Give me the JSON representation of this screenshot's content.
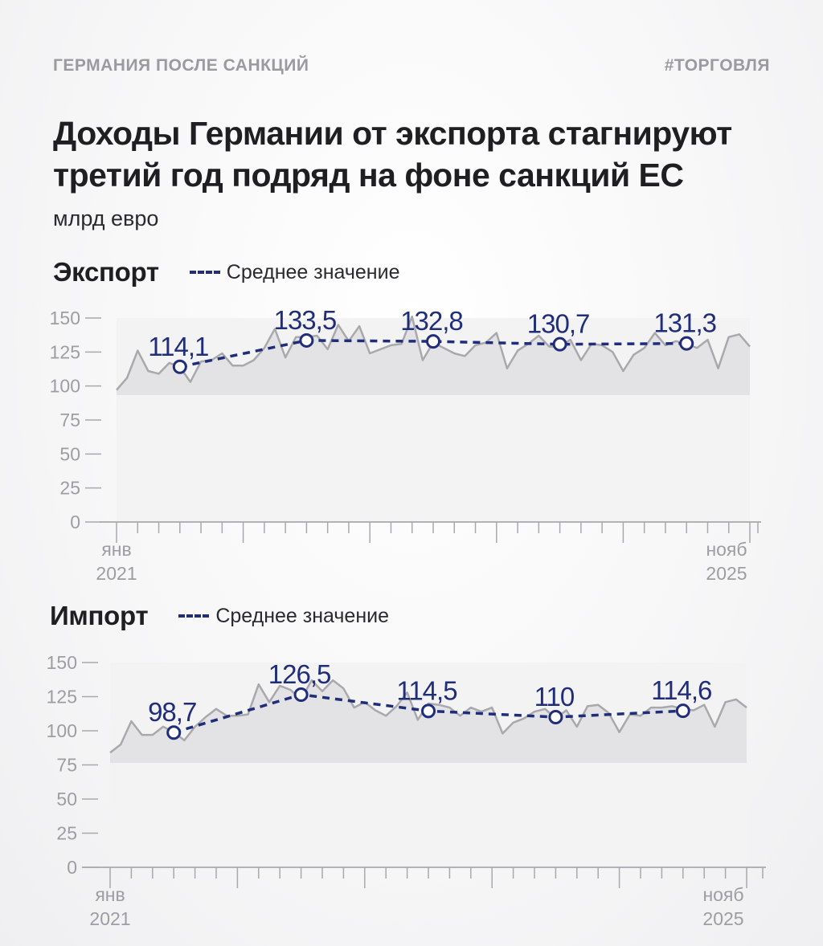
{
  "header": {
    "tag_left": "ГЕРМАНИЯ ПОСЛЕ САНКЦИЙ",
    "tag_right": "#ТОРГОВЛЯ",
    "title_line1": "Доходы Германии от экспорта стагнируют",
    "title_line2": "третий год подряд на фоне санкций ЕС",
    "units": "млрд евро"
  },
  "colors": {
    "line": "#a9a9ad",
    "area": "#e3e3e5",
    "mean": "#1f2d7a",
    "axis": "#a9a9ad",
    "text": "#1f1f22"
  },
  "legend_label": "Среднее значение",
  "chart_data": [
    {
      "type": "area",
      "title": "Экспорт",
      "ylim": [
        0,
        150
      ],
      "yticks": [
        0,
        25,
        50,
        75,
        100,
        125,
        150
      ],
      "x_start_label": [
        "янв",
        "2021"
      ],
      "x_end_label": [
        "нояб",
        "2025"
      ],
      "series": [
        {
          "values": [
            97,
            106,
            126,
            111,
            109,
            117,
            114,
            103,
            118,
            119,
            124,
            115,
            115,
            119,
            128,
            142,
            121,
            136,
            136,
            137,
            127,
            145,
            133,
            144,
            124,
            127,
            130,
            131,
            151,
            119,
            132,
            128,
            124,
            122,
            130,
            132,
            139,
            113,
            126,
            131,
            137,
            129,
            129,
            134,
            119,
            131,
            130,
            125,
            111,
            123,
            128,
            139,
            130,
            133,
            131,
            128,
            134,
            113,
            136,
            138,
            129
          ]
        },
        {
          "name": "Среднее значение",
          "years": [
            2021,
            2022,
            2023,
            2024,
            2025
          ],
          "values": [
            114.1,
            133.5,
            132.8,
            130.7,
            131.3
          ],
          "labels": [
            "114,1",
            "133,5",
            "132,8",
            "130,7",
            "131,3"
          ]
        }
      ]
    },
    {
      "type": "area",
      "title": "Импорт",
      "ylim": [
        0,
        150
      ],
      "yticks": [
        0,
        25,
        50,
        75,
        100,
        125,
        150
      ],
      "x_start_label": [
        "янв",
        "2021"
      ],
      "x_end_label": [
        "нояб",
        "2025"
      ],
      "series": [
        {
          "values": [
            84,
            90,
            107,
            97,
            97,
            103,
            99,
            93,
            103,
            110,
            116,
            111,
            111,
            112,
            134,
            121,
            133,
            130,
            123,
            137,
            129,
            137,
            131,
            117,
            121,
            115,
            111,
            118,
            128,
            108,
            120,
            119,
            117,
            111,
            117,
            114,
            117,
            98,
            106,
            109,
            114,
            116,
            109,
            115,
            103,
            118,
            119,
            113,
            99,
            112,
            111,
            117,
            117,
            118,
            116,
            115,
            119,
            103,
            121,
            123,
            117
          ]
        },
        {
          "name": "Среднее значение",
          "years": [
            2021,
            2022,
            2023,
            2024,
            2025
          ],
          "values": [
            98.7,
            126.5,
            114.5,
            110,
            114.6
          ],
          "labels": [
            "98,7",
            "126,5",
            "114,5",
            "110",
            "114,6"
          ]
        }
      ]
    }
  ]
}
